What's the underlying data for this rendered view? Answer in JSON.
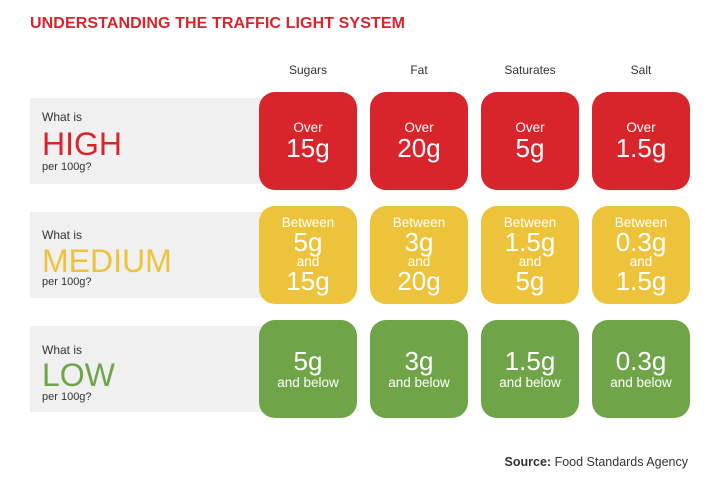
{
  "title": "UNDERSTANDING THE TRAFFIC LIGHT SYSTEM",
  "columns": [
    "Sugars",
    "Fat",
    "Saturates",
    "Salt"
  ],
  "colors": {
    "high": "#d8242b",
    "medium": "#ecc33a",
    "low": "#70a448"
  },
  "rows": {
    "high": {
      "what_is": "What is",
      "level": "HIGH",
      "per": "per 100g?",
      "cells": [
        {
          "pre": "Over",
          "value": "15g"
        },
        {
          "pre": "Over",
          "value": "20g"
        },
        {
          "pre": "Over",
          "value": "5g"
        },
        {
          "pre": "Over",
          "value": "1.5g"
        }
      ]
    },
    "medium": {
      "what_is": "What is",
      "level": "MEDIUM",
      "per": "per 100g?",
      "cells": [
        {
          "pre": "Between",
          "from": "5g",
          "and": "and",
          "to": "15g"
        },
        {
          "pre": "Between",
          "from": "3g",
          "and": "and",
          "to": "20g"
        },
        {
          "pre": "Between",
          "from": "1.5g",
          "and": "and",
          "to": "5g"
        },
        {
          "pre": "Between",
          "from": "0.3g",
          "and": "and",
          "to": "1.5g"
        }
      ]
    },
    "low": {
      "what_is": "What is",
      "level": "LOW",
      "per": "per 100g?",
      "cells": [
        {
          "value": "5g",
          "post": "and below"
        },
        {
          "value": "3g",
          "post": "and below"
        },
        {
          "value": "1.5g",
          "post": "and below"
        },
        {
          "value": "0.3g",
          "post": "and below"
        }
      ]
    }
  },
  "source": {
    "label": "Source:",
    "text": "Food Standards Agency"
  }
}
